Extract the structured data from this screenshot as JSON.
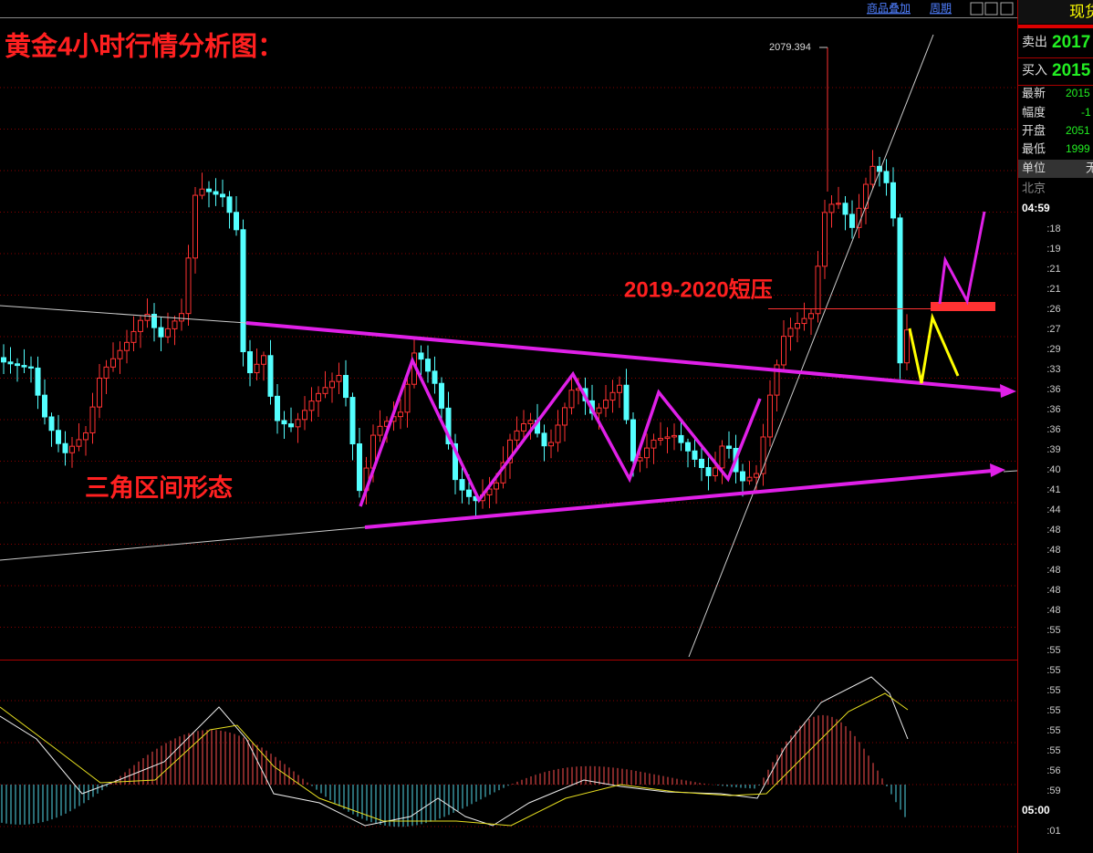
{
  "toolbar": {
    "links": [
      "商品叠加",
      "周期"
    ]
  },
  "chart": {
    "title": "黄金4小时行情分析图：",
    "annotations": {
      "pattern": "三角区间形态",
      "resistance": "2019-2020短压",
      "high": "2079.394"
    }
  },
  "quote_panel": {
    "header": "现货",
    "main_rows": [
      {
        "label": "卖出",
        "value": "2017"
      },
      {
        "label": "买入",
        "value": "2015"
      }
    ],
    "rows": [
      {
        "label": "最新",
        "value": "2015"
      },
      {
        "label": "幅度",
        "value": "-1"
      },
      {
        "label": "开盘",
        "value": "2051"
      },
      {
        "label": "最低",
        "value": "1999"
      }
    ],
    "unit": {
      "label": "单位",
      "value": "无"
    },
    "city": "北京",
    "time": "04:59",
    "ticks": [
      ":18",
      ":19",
      ":21",
      ":21",
      ":26",
      ":27",
      ":29",
      ":33",
      ":36",
      ":36",
      ":36",
      ":39",
      ":40",
      ":41",
      ":44",
      ":48",
      ":48",
      ":48",
      ":48",
      ":48",
      ":55",
      ":55",
      ":55",
      ":55",
      ":55",
      ":55",
      ":55",
      ":56",
      ":59",
      "05:00",
      ":01"
    ]
  }
}
